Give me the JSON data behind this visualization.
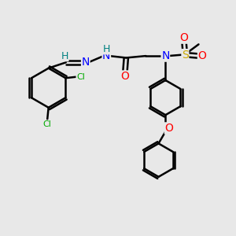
{
  "background_color": "#e8e8e8",
  "atom_colors": {
    "C": "#000000",
    "H": "#008080",
    "N": "#0000ff",
    "O": "#ff0000",
    "S": "#ccaa00",
    "Cl": "#00aa00"
  },
  "bond_color": "#000000",
  "bond_width": 1.8,
  "figsize": [
    3.0,
    3.0
  ],
  "dpi": 100
}
